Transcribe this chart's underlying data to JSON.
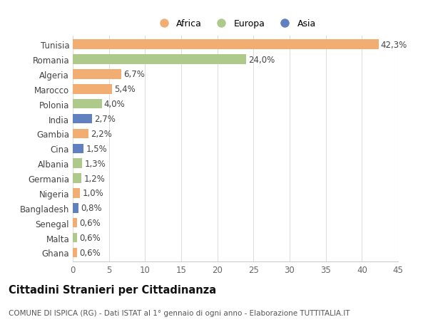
{
  "countries": [
    "Tunisia",
    "Romania",
    "Algeria",
    "Marocco",
    "Polonia",
    "India",
    "Gambia",
    "Cina",
    "Albania",
    "Germania",
    "Nigeria",
    "Bangladesh",
    "Senegal",
    "Malta",
    "Ghana"
  ],
  "values": [
    42.3,
    24.0,
    6.7,
    5.4,
    4.0,
    2.7,
    2.2,
    1.5,
    1.3,
    1.2,
    1.0,
    0.8,
    0.6,
    0.6,
    0.6
  ],
  "labels": [
    "42,3%",
    "24,0%",
    "6,7%",
    "5,4%",
    "4,0%",
    "2,7%",
    "2,2%",
    "1,5%",
    "1,3%",
    "1,2%",
    "1,0%",
    "0,8%",
    "0,6%",
    "0,6%",
    "0,6%"
  ],
  "continents": [
    "Africa",
    "Europa",
    "Africa",
    "Africa",
    "Europa",
    "Asia",
    "Africa",
    "Asia",
    "Europa",
    "Europa",
    "Africa",
    "Asia",
    "Africa",
    "Europa",
    "Africa"
  ],
  "continent_colors": {
    "Africa": "#F2AE72",
    "Europa": "#AECA8A",
    "Asia": "#6080C0"
  },
  "legend_labels": [
    "Africa",
    "Europa",
    "Asia"
  ],
  "legend_colors": [
    "#F2AE72",
    "#AECA8A",
    "#6080C0"
  ],
  "xlim": [
    0,
    45
  ],
  "xticks": [
    0,
    5,
    10,
    15,
    20,
    25,
    30,
    35,
    40,
    45
  ],
  "title": "Cittadini Stranieri per Cittadinanza",
  "subtitle": "COMUNE DI ISPICA (RG) - Dati ISTAT al 1° gennaio di ogni anno - Elaborazione TUTTITALIA.IT",
  "background_color": "#ffffff",
  "bar_height": 0.65,
  "label_fontsize": 8.5,
  "tick_fontsize": 8.5,
  "title_fontsize": 10.5,
  "subtitle_fontsize": 7.5
}
